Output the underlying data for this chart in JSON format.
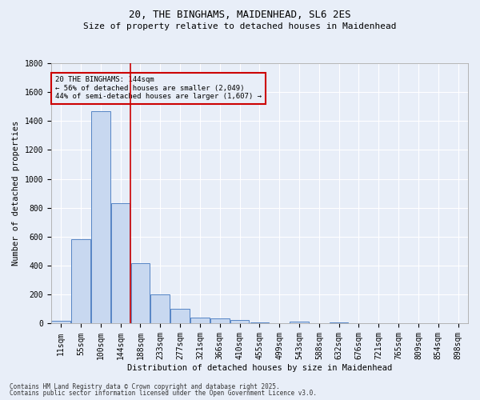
{
  "title1": "20, THE BINGHAMS, MAIDENHEAD, SL6 2ES",
  "title2": "Size of property relative to detached houses in Maidenhead",
  "xlabel": "Distribution of detached houses by size in Maidenhead",
  "ylabel": "Number of detached properties",
  "footer1": "Contains HM Land Registry data © Crown copyright and database right 2025.",
  "footer2": "Contains public sector information licensed under the Open Government Licence v3.0.",
  "annotation_title": "20 THE BINGHAMS: 144sqm",
  "annotation_line1": "← 56% of detached houses are smaller (2,049)",
  "annotation_line2": "44% of semi-detached houses are larger (1,607) →",
  "red_line_index": 3,
  "categories": [
    "11sqm",
    "55sqm",
    "100sqm",
    "144sqm",
    "188sqm",
    "233sqm",
    "277sqm",
    "321sqm",
    "366sqm",
    "410sqm",
    "455sqm",
    "499sqm",
    "543sqm",
    "588sqm",
    "632sqm",
    "676sqm",
    "721sqm",
    "765sqm",
    "809sqm",
    "854sqm",
    "898sqm"
  ],
  "values": [
    20,
    585,
    1470,
    830,
    415,
    200,
    100,
    40,
    35,
    25,
    10,
    0,
    15,
    0,
    10,
    0,
    0,
    0,
    0,
    0,
    0
  ],
  "bar_color": "#c8d8f0",
  "bar_edge_color": "#5585c5",
  "red_line_color": "#cc0000",
  "background_color": "#e8eef8",
  "grid_color": "#ffffff",
  "ylim": [
    0,
    1800
  ],
  "yticks": [
    0,
    200,
    400,
    600,
    800,
    1000,
    1200,
    1400,
    1600,
    1800
  ],
  "title1_fontsize": 9,
  "title2_fontsize": 8,
  "tick_fontsize": 7,
  "label_fontsize": 7.5,
  "footer_fontsize": 5.5,
  "ann_fontsize": 6.5
}
